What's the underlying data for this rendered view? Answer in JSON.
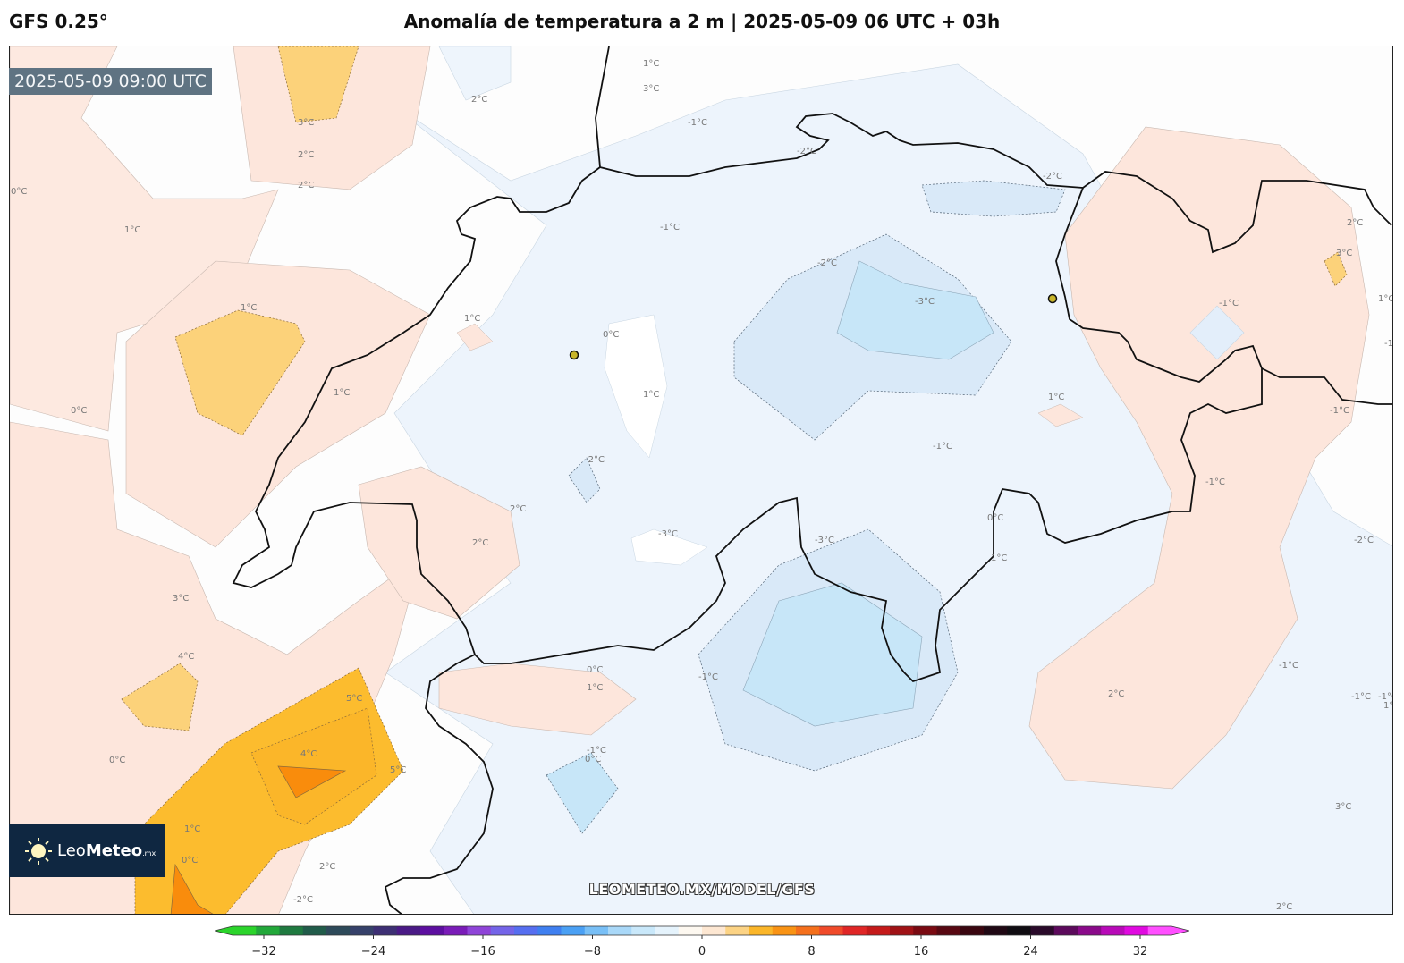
{
  "header": {
    "model": "GFS 0.25°",
    "title": "Anomalía de temperatura a 2 m | 2025-05-09 06 UTC + 03h"
  },
  "map": {
    "valid_time": "2025-05-09 09:00 UTC",
    "watermark": "LEOMETEO.MX/MODEL/GFS",
    "contour_labels": [
      "3°C",
      "2°C",
      "2°C",
      "1°C",
      "0°C",
      "-1°C",
      "2°C",
      "1°C",
      "3°C",
      "1°C",
      "1°C",
      "1°C",
      "0°C",
      "1°C",
      "-2°C",
      "-1°C",
      "-2°C",
      "-3°C",
      "-2°C",
      "0°C",
      "1°C",
      "2°C",
      "-2°C",
      "-3°C",
      "-1°C",
      "0°C",
      "1°C",
      "-1°C",
      "2°C",
      "3°C",
      "1°C",
      "-1°C",
      "-1°C",
      "2°C",
      "3°C",
      "4°C",
      "5°C",
      "4°C",
      "5°C",
      "1°C",
      "0°C",
      "2°C",
      "-2°C",
      "-3°C",
      "-1°C",
      "0°C",
      "1°C",
      "2°C",
      "-1°C",
      "-2°C",
      "-1°C",
      "0°C",
      "-1°C",
      "-1°C",
      "-1°C",
      "1°C",
      "2°C",
      "3°C",
      "0°C"
    ],
    "markers": [
      "city-marker-west",
      "city-marker-east"
    ]
  },
  "logo": {
    "prefix": "Leo",
    "brand": "Meteo",
    "suffix": ".mx"
  },
  "colorbar": {
    "ticks": [
      "−32",
      "−24",
      "−16",
      "−8",
      "0",
      "8",
      "16",
      "24",
      "32"
    ],
    "min": -32,
    "max": 32
  },
  "colors": {
    "warm1": "#fde6dc",
    "warm3": "#fcd27a",
    "warm4": "#fbb829",
    "warm5": "#f98c0c",
    "cool1": "#e9f2fb",
    "cool2": "#d9e9f8",
    "cool3": "#c7e6f8",
    "border": "#111111"
  }
}
